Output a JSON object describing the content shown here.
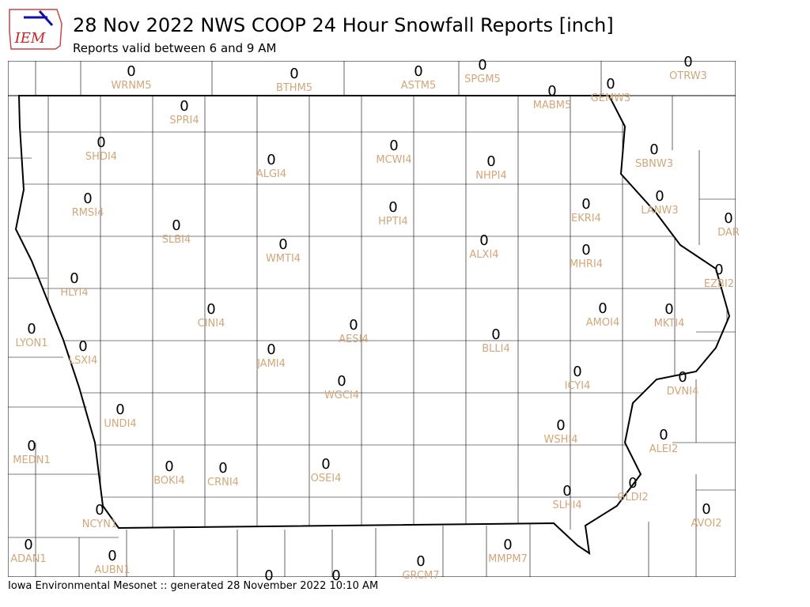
{
  "logo_text": "IEM",
  "title": "28 Nov 2022 NWS COOP 24 Hour Snowfall Reports [inch]",
  "subtitle": "Reports valid between 6 and 9 AM",
  "footer": "Iowa Environmental Mesonet :: generated 28 November 2022 10:10 AM",
  "stations": [
    {
      "id": "WRNM5",
      "value": 0
    },
    {
      "id": "BTHM5",
      "value": 0
    },
    {
      "id": "ASTM5",
      "value": 0
    },
    {
      "id": "SPGM5",
      "value": 0
    },
    {
      "id": "OTRW3",
      "value": 0
    },
    {
      "id": "MABM5",
      "value": 0
    },
    {
      "id": "GEMW3",
      "value": 0
    },
    {
      "id": "SPRI4",
      "value": 0
    },
    {
      "id": "SHDI4",
      "value": 0
    },
    {
      "id": "ALGI4",
      "value": 0
    },
    {
      "id": "MCWI4",
      "value": 0
    },
    {
      "id": "NHPI4",
      "value": 0
    },
    {
      "id": "SBNW3",
      "value": 0
    },
    {
      "id": "RMSI4",
      "value": 0
    },
    {
      "id": "HPTI4",
      "value": 0
    },
    {
      "id": "EKRI4",
      "value": 0
    },
    {
      "id": "LANW3",
      "value": 0
    },
    {
      "id": "DAR",
      "value": 0
    },
    {
      "id": "SLBI4",
      "value": 0
    },
    {
      "id": "WMTI4",
      "value": 0
    },
    {
      "id": "ALXI4",
      "value": 0
    },
    {
      "id": "MHRI4",
      "value": 0
    },
    {
      "id": "EZBI2",
      "value": 0
    },
    {
      "id": "HLYI4",
      "value": 0
    },
    {
      "id": "CINI4",
      "value": 0
    },
    {
      "id": "AMOI4",
      "value": 0
    },
    {
      "id": "MKTI4",
      "value": 0
    },
    {
      "id": "LYON1",
      "value": 0
    },
    {
      "id": "AESI4",
      "value": 0
    },
    {
      "id": "BLLI4",
      "value": 0
    },
    {
      "id": "LSXI4",
      "value": 0
    },
    {
      "id": "JAMI4",
      "value": 0
    },
    {
      "id": "ICYI4",
      "value": 0
    },
    {
      "id": "DVNI4",
      "value": 0
    },
    {
      "id": "WGCI4",
      "value": 0
    },
    {
      "id": "UNDI4",
      "value": 0
    },
    {
      "id": "WSHI4",
      "value": 0
    },
    {
      "id": "ALEI2",
      "value": 0
    },
    {
      "id": "MEDN1",
      "value": 0
    },
    {
      "id": "BOKI4",
      "value": 0
    },
    {
      "id": "CRNI4",
      "value": 0
    },
    {
      "id": "OSEI4",
      "value": 0
    },
    {
      "id": "SLHI4",
      "value": 0
    },
    {
      "id": "GLDI2",
      "value": 0
    },
    {
      "id": "AVOI2",
      "value": 0
    },
    {
      "id": "NCYN1",
      "value": 0
    },
    {
      "id": "ADAN1",
      "value": 0
    },
    {
      "id": "AUBN1",
      "value": 0
    },
    {
      "id": "MMPM7",
      "value": 0
    },
    {
      "id": "GRCM7",
      "value": 0
    },
    {
      "value": 0
    },
    {
      "value": 0
    }
  ]
}
